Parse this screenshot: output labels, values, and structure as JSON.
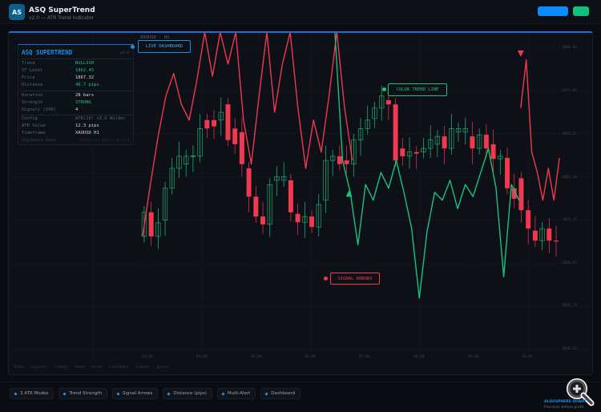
{
  "header": {
    "logo": "AS",
    "title": "ASQ SuperTrend",
    "subtitle": "v2.0 — ATR Trend Indicator"
  },
  "colors": {
    "accent": "#1a8fe8",
    "bull": "#19c37d",
    "bear": "#f0384f",
    "primary_button": "#0a8cff",
    "success_button": "#0fc27a"
  },
  "chart": {
    "symbol": "XAUUSD · H1",
    "price_labels": [
      "1886.05",
      "1877.83",
      "1869.61",
      "1861.39",
      "1853.17",
      "1844.95",
      "1836.73",
      "1828.51"
    ],
    "time_labels": [
      "03:00",
      "04:00",
      "05:00",
      "06:00",
      "07:00",
      "08:00",
      "09:00",
      "10:00"
    ],
    "tabs": [
      "Trade",
      "Exposure",
      "History",
      "News",
      "Alerts",
      "Code Base",
      "Experts",
      "Journal"
    ]
  },
  "callouts": {
    "live": "LIVE DASHBOARD",
    "trend": "COLOR TREND LINE",
    "arrows": "SIGNAL ARROWS"
  },
  "dashboard": {
    "title": "ASQ SUPERTREND",
    "version": "v2.0",
    "rows": [
      {
        "k": "Trend",
        "v": "BULLISH"
      },
      {
        "k": "ST Level",
        "v": "1862.45"
      },
      {
        "k": "Price",
        "v": "1867.32"
      },
      {
        "k": "Distance",
        "v": "48.7 pips"
      },
      {
        "k": "Duration",
        "v": "28 bars"
      },
      {
        "k": "Strength",
        "v": "STRONG"
      },
      {
        "k": "Signals (100)",
        "v": "4"
      },
      {
        "k": "Config",
        "v": "ATR(10) x3.0 Wilder"
      },
      {
        "k": "ATR Value",
        "v": "12.3 pips"
      },
      {
        "k": "Timeframe",
        "v": "XAUUSD H1"
      }
    ],
    "footer_left": "AlgoSphere Quant",
    "footer_right": "Precision before profit"
  },
  "features": [
    "3 ATR Modes",
    "Trend Strength",
    "Signal Arrows",
    "Distance (pips)",
    "Multi-Alert",
    "Dashboard"
  ],
  "brand": {
    "name": "ALGOSPHERE QUANT",
    "tagline": "Precision before profit."
  },
  "chart_data": {
    "type": "candlestick",
    "ylim": [
      1828.51,
      1886.05
    ],
    "xlim_hours": [
      2.9,
      10.6
    ],
    "candles_time_range": [
      2.94,
      10.5
    ],
    "candles": [
      [
        1850.1,
        1854.7
      ],
      [
        1854.7,
        1850.1
      ],
      [
        1850.1,
        1852.7
      ],
      [
        1853.2,
        1859.3
      ],
      [
        1859.3,
        1863.1
      ],
      [
        1863.1,
        1865.4
      ],
      [
        1863.9,
        1865.4
      ],
      [
        1865.4,
        1865.5
      ],
      [
        1865.4,
        1870.7
      ],
      [
        1872.3,
        1870.7
      ],
      [
        1872.3,
        1871.1
      ],
      [
        1872.3,
        1873.8
      ],
      [
        1875.3,
        1868.5
      ],
      [
        1870.7,
        1867.7
      ],
      [
        1870.0,
        1863.9
      ],
      [
        1863.1,
        1857.7
      ],
      [
        1857.7,
        1853.9
      ],
      [
        1853.9,
        1852.4
      ],
      [
        1852.4,
        1860.0
      ],
      [
        1860.8,
        1861.5
      ],
      [
        1860.8,
        1861.5
      ],
      [
        1860.8,
        1854.7
      ],
      [
        1854.4,
        1852.8
      ],
      [
        1852.8,
        1853.9
      ],
      [
        1853.9,
        1851.9
      ],
      [
        1851.9,
        1856.2
      ],
      [
        1857.0,
        1864.6
      ],
      [
        1864.6,
        1865.4
      ],
      [
        1865.4,
        1863.9
      ],
      [
        1864.6,
        1863.9
      ],
      [
        1863.9,
        1868.5
      ],
      [
        1868.5,
        1870.7
      ],
      [
        1870.7,
        1872.3
      ],
      [
        1872.6,
        1874.6
      ],
      [
        1874.6,
        1876.9
      ],
      [
        1876.1,
        1875.3
      ],
      [
        1875.3,
        1864.6
      ],
      [
        1866.9,
        1865.4
      ],
      [
        1865.4,
        1866.2
      ],
      [
        1866.2,
        1865.9
      ],
      [
        1866.2,
        1866.9
      ],
      [
        1866.9,
        1868.5
      ],
      [
        1867.7,
        1869.2
      ],
      [
        1869.2,
        1866.9
      ],
      [
        1866.9,
        1870.7
      ],
      [
        1870.0,
        1870.7
      ],
      [
        1870.0,
        1870.7
      ],
      [
        1869.2,
        1866.9
      ],
      [
        1866.9,
        1869.5
      ],
      [
        1869.5,
        1866.9
      ],
      [
        1867.7,
        1864.9
      ],
      [
        1864.9,
        1865.4
      ],
      [
        1865.1,
        1859.3
      ],
      [
        1859.3,
        1857.3
      ],
      [
        1861.2,
        1855.1
      ],
      [
        1855.1,
        1851.6
      ],
      [
        1851.2,
        1849.3
      ],
      [
        1849.3,
        1851.6
      ],
      [
        1851.6,
        1849.3
      ],
      [
        1849.3,
        1849.2
      ]
    ],
    "supertrend": [
      {
        "trend": "bear",
        "hours": [
          2.91,
          6.76
        ],
        "values": [
          1850.1,
          1860.0,
          1869.2,
          1876.9,
          1881.2,
          1875.3,
          1872.3,
          1880.0,
          1889.1,
          1880.7,
          1889.1,
          1883.0,
          1889.1,
          1872.3,
          1863.9,
          1876.9,
          1889.1,
          1873.8,
          1883.0,
          1889.1,
          1874.6,
          1863.1,
          1872.3,
          1866.2,
          1876.9,
          1889.1,
          1874.6,
          1864.6
        ]
      },
      {
        "trend": "bull",
        "hours": [
          6.44,
          9.82
        ],
        "values": [
          1889.1,
          1864.6,
          1858.5,
          1848.5,
          1860.0,
          1857.0,
          1862.3,
          1859.3,
          1864.6,
          1858.5,
          1851.6,
          1838.3,
          1850.9,
          1858.5,
          1857.0,
          1860.8,
          1855.4,
          1860.0,
          1857.7,
          1862.3,
          1866.9,
          1859.3,
          1842.4,
          1860.0,
          1857.0
        ]
      },
      {
        "trend": "bear",
        "hours": [
          9.85,
          10.56
        ],
        "values": [
          1874.6,
          1883.8,
          1866.2,
          1862.3,
          1857.0,
          1863.1,
          1857.0,
          1865.1
        ]
      }
    ],
    "signals": [
      {
        "type": "buy",
        "hour": 6.7,
        "price": 1858.3
      },
      {
        "type": "sell",
        "hour": 9.85,
        "price": 1885.0
      }
    ]
  }
}
